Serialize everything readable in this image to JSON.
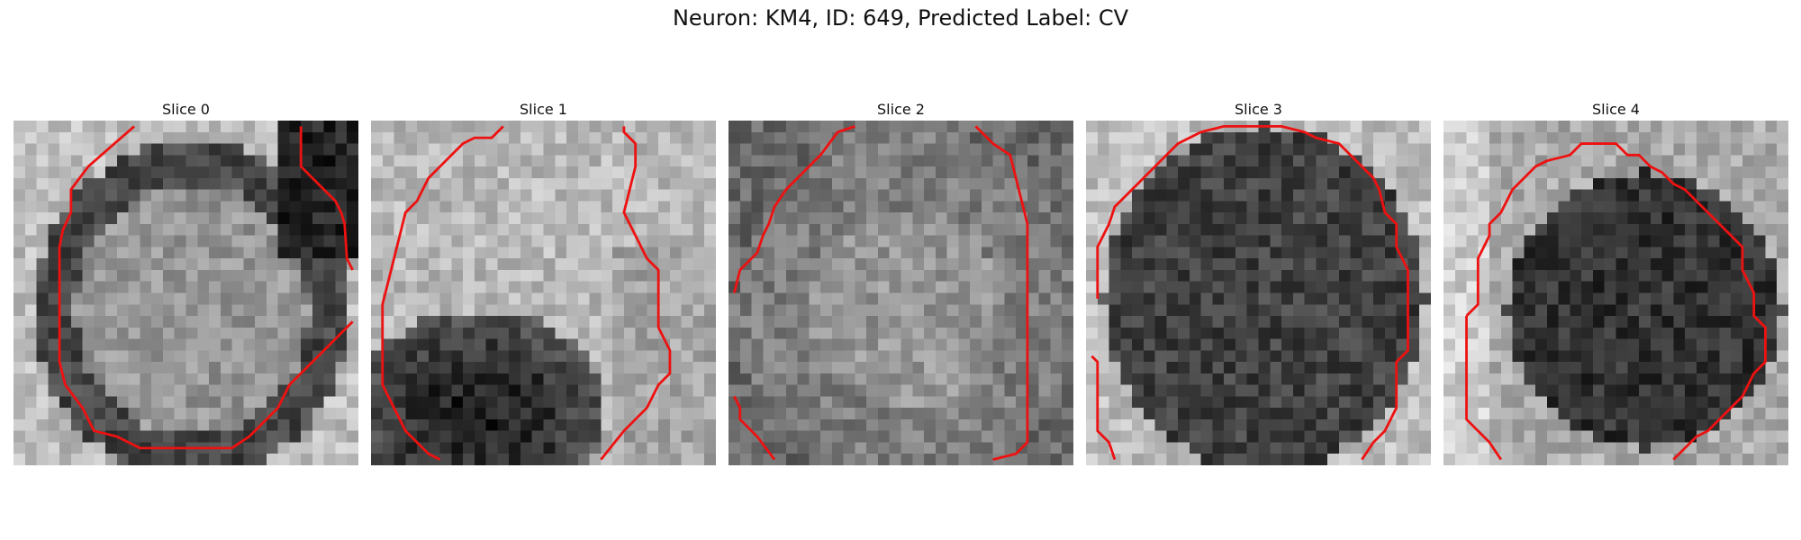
{
  "figure": {
    "title": "Neuron: KM4, ID: 649, Predicted Label: CV",
    "contour_color": "#ee1111",
    "slices": [
      {
        "label": "Slice 0"
      },
      {
        "label": "Slice 1"
      },
      {
        "label": "Slice 2"
      },
      {
        "label": "Slice 3"
      },
      {
        "label": "Slice 4"
      }
    ]
  }
}
